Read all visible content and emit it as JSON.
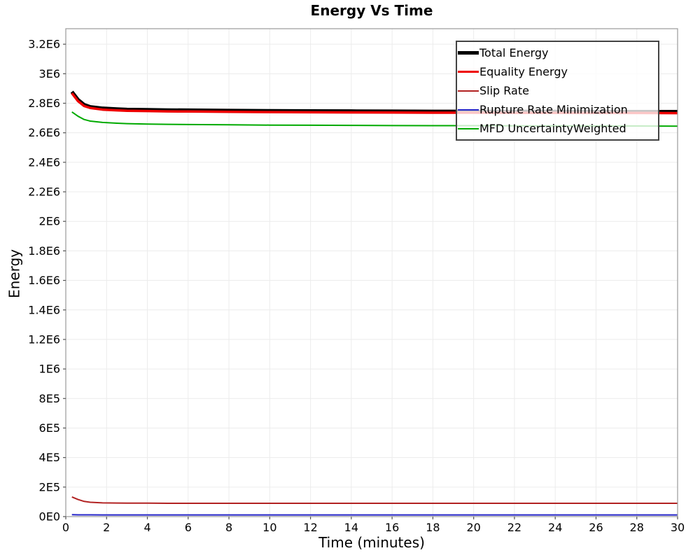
{
  "chart_data": {
    "type": "line",
    "title": "Energy Vs Time",
    "xlabel": "Time (minutes)",
    "ylabel": "Energy",
    "xlim": [
      0,
      30
    ],
    "ylim": [
      0,
      3305000
    ],
    "grid": true,
    "legend_position": "top-right-inside",
    "x_ticks": [
      {
        "v": 0,
        "label": "0"
      },
      {
        "v": 2,
        "label": "2"
      },
      {
        "v": 4,
        "label": "4"
      },
      {
        "v": 6,
        "label": "6"
      },
      {
        "v": 8,
        "label": "8"
      },
      {
        "v": 10,
        "label": "10"
      },
      {
        "v": 12,
        "label": "12"
      },
      {
        "v": 14,
        "label": "14"
      },
      {
        "v": 16,
        "label": "16"
      },
      {
        "v": 18,
        "label": "18"
      },
      {
        "v": 20,
        "label": "20"
      },
      {
        "v": 22,
        "label": "22"
      },
      {
        "v": 24,
        "label": "24"
      },
      {
        "v": 26,
        "label": "26"
      },
      {
        "v": 28,
        "label": "28"
      },
      {
        "v": 30,
        "label": "30"
      }
    ],
    "y_ticks": [
      {
        "v": 0,
        "label": "0E0"
      },
      {
        "v": 200000,
        "label": "2E5"
      },
      {
        "v": 400000,
        "label": "4E5"
      },
      {
        "v": 600000,
        "label": "6E5"
      },
      {
        "v": 800000,
        "label": "8E5"
      },
      {
        "v": 1000000,
        "label": "1E6"
      },
      {
        "v": 1200000,
        "label": "1.2E6"
      },
      {
        "v": 1400000,
        "label": "1.4E6"
      },
      {
        "v": 1600000,
        "label": "1.6E6"
      },
      {
        "v": 1800000,
        "label": "1.8E6"
      },
      {
        "v": 2000000,
        "label": "2E6"
      },
      {
        "v": 2200000,
        "label": "2.2E6"
      },
      {
        "v": 2400000,
        "label": "2.4E6"
      },
      {
        "v": 2600000,
        "label": "2.6E6"
      },
      {
        "v": 2800000,
        "label": "2.8E6"
      },
      {
        "v": 3000000,
        "label": "3E6"
      },
      {
        "v": 3200000,
        "label": "3.2E6"
      }
    ],
    "x": [
      0.3,
      0.6,
      0.9,
      1.2,
      1.8,
      2.5,
      3,
      4,
      5,
      6,
      8,
      10,
      12,
      14,
      16,
      18,
      20,
      22,
      24,
      26,
      28,
      30
    ],
    "series": [
      {
        "name": "Total Energy",
        "color": "#000000",
        "line_width": 5,
        "values": [
          2878000,
          2824000,
          2790000,
          2776000,
          2766000,
          2761000,
          2758000,
          2756000,
          2754000,
          2753000,
          2751000,
          2749000,
          2748000,
          2747000,
          2746000,
          2745000,
          2745000,
          2744000,
          2744000,
          2743000,
          2743000,
          2743000
        ]
      },
      {
        "name": "Equality Energy",
        "color": "#ee0000",
        "line_width": 3.5,
        "values": [
          2868000,
          2814000,
          2781000,
          2768000,
          2757000,
          2752000,
          2749000,
          2747000,
          2745000,
          2744000,
          2742000,
          2740000,
          2739000,
          2738000,
          2737000,
          2736000,
          2736000,
          2735000,
          2735000,
          2734000,
          2734000,
          2733000
        ]
      },
      {
        "name": "Slip Rate",
        "color": "#b22222",
        "line_width": 2,
        "values": [
          133000,
          116000,
          103000,
          97000,
          93000,
          92000,
          91000,
          91000,
          90000,
          90000,
          90000,
          90000,
          90000,
          90000,
          90000,
          90000,
          90000,
          90000,
          90000,
          90000,
          90000,
          90000
        ]
      },
      {
        "name": "Rupture Rate Minimization",
        "color": "#2424c8",
        "line_width": 2,
        "values": [
          13000,
          12000,
          12000,
          12000,
          11000,
          11000,
          11000,
          11000,
          11000,
          11000,
          11000,
          11000,
          11000,
          11000,
          11000,
          11000,
          11000,
          11000,
          11000,
          11000,
          11000,
          11000
        ]
      },
      {
        "name": "MFD UncertaintyWeighted",
        "color": "#00aa00",
        "line_width": 2,
        "values": [
          2741000,
          2712000,
          2690000,
          2679000,
          2670000,
          2665000,
          2662000,
          2659000,
          2657000,
          2656000,
          2654000,
          2652000,
          2651000,
          2650000,
          2649000,
          2648000,
          2648000,
          2647000,
          2647000,
          2646000,
          2646000,
          2645000
        ]
      }
    ],
    "colors": {
      "grid": "#ececec",
      "plot_border": "#9a9a9a",
      "tick": "#555555",
      "tick_label": "#000000"
    }
  }
}
